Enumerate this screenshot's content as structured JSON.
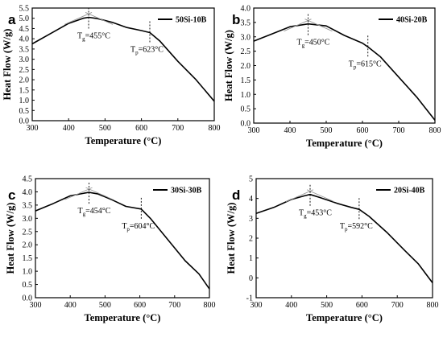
{
  "chart_data": [
    {
      "panel_label": "a",
      "type": "line",
      "legend": "50Si-10B",
      "xlabel": "Temperature (°C)",
      "ylabel": "Heat Flow (W/g)",
      "xlim": [
        300,
        800
      ],
      "ylim": [
        0.0,
        5.5
      ],
      "xticks": [
        "300",
        "400",
        "500",
        "600",
        "700",
        "800"
      ],
      "yticks": [
        "0.0",
        "0.5",
        "1.0",
        "1.5",
        "2.0",
        "2.5",
        "3.0",
        "3.5",
        "4.0",
        "4.5",
        "5.0",
        "5.5"
      ],
      "series": [
        {
          "x": [
            300,
            350,
            400,
            440,
            455,
            480,
            520,
            560,
            600,
            623,
            650,
            700,
            750,
            800
          ],
          "y": [
            3.75,
            4.25,
            4.75,
            5.0,
            5.05,
            4.98,
            4.8,
            4.55,
            4.4,
            4.3,
            3.9,
            2.9,
            2.0,
            0.95
          ]
        }
      ],
      "annotations": {
        "tg": {
          "main": "T",
          "sub": "g",
          "rest": "=455°C",
          "x": 455,
          "y": 5.05
        },
        "tp": {
          "main": "T",
          "sub": "p",
          "rest": "=623°C",
          "x": 623,
          "y": 4.3
        }
      }
    },
    {
      "panel_label": "b",
      "type": "line",
      "legend": "40Si-20B",
      "xlabel": "Temperature (°C)",
      "ylabel": "Heat Flow (W/g)",
      "xlim": [
        300,
        800
      ],
      "ylim": [
        0.0,
        4.0
      ],
      "xticks": [
        "300",
        "400",
        "500",
        "600",
        "700",
        "800"
      ],
      "yticks": [
        "0.0",
        "0.5",
        "1.0",
        "1.5",
        "2.0",
        "2.5",
        "3.0",
        "3.5",
        "4.0"
      ],
      "series": [
        {
          "x": [
            300,
            350,
            400,
            450,
            500,
            550,
            600,
            615,
            650,
            700,
            750,
            800
          ],
          "y": [
            2.85,
            3.1,
            3.35,
            3.45,
            3.38,
            3.05,
            2.78,
            2.65,
            2.3,
            1.6,
            0.9,
            0.1
          ]
        }
      ],
      "annotations": {
        "tg": {
          "main": "T",
          "sub": "g",
          "rest": "=450°C",
          "x": 450,
          "y": 3.45
        },
        "tp": {
          "main": "T",
          "sub": "p",
          "rest": "=615°C",
          "x": 615,
          "y": 2.65
        }
      }
    },
    {
      "panel_label": "c",
      "type": "line",
      "legend": "30Si-30B",
      "xlabel": "Temperature (°C)",
      "ylabel": "Heat Flow (W/g)",
      "xlim": [
        300,
        800
      ],
      "ylim": [
        0.0,
        4.5
      ],
      "xticks": [
        "300",
        "400",
        "500",
        "600",
        "700",
        "800"
      ],
      "yticks": [
        "0.0",
        "0.5",
        "1.0",
        "1.5",
        "2.0",
        "2.5",
        "3.0",
        "3.5",
        "4.0",
        "4.5"
      ],
      "series": [
        {
          "x": [
            300,
            350,
            400,
            440,
            454,
            480,
            520,
            560,
            604,
            630,
            680,
            730,
            770,
            800
          ],
          "y": [
            3.28,
            3.55,
            3.85,
            3.95,
            3.98,
            3.92,
            3.7,
            3.45,
            3.35,
            3.0,
            2.2,
            1.4,
            0.9,
            0.33
          ]
        }
      ],
      "annotations": {
        "tg": {
          "main": "T",
          "sub": "g",
          "rest": "=454°C",
          "x": 454,
          "y": 3.98
        },
        "tp": {
          "main": "T",
          "sub": "p",
          "rest": "=604°C",
          "x": 604,
          "y": 3.35
        }
      }
    },
    {
      "panel_label": "d",
      "type": "line",
      "legend": "20Si-40B",
      "xlabel": "Temperature (°C)",
      "ylabel": "Heat Flow (W/g)",
      "xlim": [
        300,
        800
      ],
      "ylim": [
        -1,
        5
      ],
      "xticks": [
        "300",
        "400",
        "500",
        "600",
        "700",
        "800"
      ],
      "yticks": [
        "-1",
        "0",
        "1",
        "2",
        "3",
        "4",
        "5"
      ],
      "series": [
        {
          "x": [
            300,
            350,
            400,
            440,
            453,
            480,
            530,
            570,
            592,
            620,
            670,
            720,
            760,
            800
          ],
          "y": [
            3.25,
            3.55,
            3.95,
            4.15,
            4.2,
            4.05,
            3.75,
            3.55,
            3.45,
            3.1,
            2.3,
            1.4,
            0.7,
            -0.25
          ]
        }
      ],
      "annotations": {
        "tg": {
          "main": "T",
          "sub": "g",
          "rest": "=453°C",
          "x": 453,
          "y": 4.2
        },
        "tp": {
          "main": "T",
          "sub": "p",
          "rest": "=592°C",
          "x": 592,
          "y": 3.45
        }
      }
    }
  ]
}
